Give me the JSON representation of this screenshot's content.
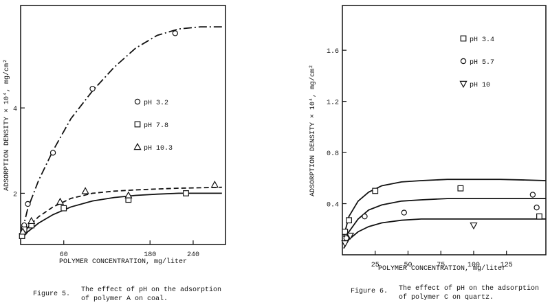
{
  "chart_data": [
    {
      "type": "scatter",
      "figure_label": "Figure 5.",
      "caption_lines": [
        "The effect of pH on the adsorption",
        "of polymer A on coal."
      ],
      "title": "",
      "xlabel": "POLYMER CONCENTRATION, mg/liter",
      "ylabel": "ADSORPTION DENSITY × 10⁴, mg/cm²",
      "xlim": [
        0,
        285
      ],
      "ylim": [
        0.8,
        6.4
      ],
      "xticks": [
        60,
        180,
        240
      ],
      "yticks": [
        2,
        4
      ],
      "grid": false,
      "legend_position": "right",
      "series": [
        {
          "name": "pH 3.2",
          "marker": "circle",
          "line_style": "dash-dot",
          "points": [
            [
              5,
              1.25
            ],
            [
              10,
              1.75
            ],
            [
              45,
              2.95
            ],
            [
              100,
              4.45
            ],
            [
              215,
              5.75
            ]
          ],
          "curve": [
            [
              2,
              1.1
            ],
            [
              10,
              1.65
            ],
            [
              25,
              2.3
            ],
            [
              45,
              3.0
            ],
            [
              70,
              3.75
            ],
            [
              100,
              4.4
            ],
            [
              130,
              4.95
            ],
            [
              160,
              5.4
            ],
            [
              190,
              5.7
            ],
            [
              220,
              5.85
            ],
            [
              250,
              5.9
            ],
            [
              280,
              5.9
            ]
          ]
        },
        {
          "name": "pH 7.8",
          "marker": "square",
          "line_style": "solid",
          "points": [
            [
              2,
              1.0
            ],
            [
              5,
              1.15
            ],
            [
              15,
              1.25
            ],
            [
              60,
              1.65
            ],
            [
              150,
              1.85
            ],
            [
              230,
              2.0
            ]
          ],
          "curve": [
            [
              2,
              0.95
            ],
            [
              10,
              1.1
            ],
            [
              25,
              1.3
            ],
            [
              45,
              1.5
            ],
            [
              70,
              1.68
            ],
            [
              100,
              1.82
            ],
            [
              130,
              1.9
            ],
            [
              160,
              1.95
            ],
            [
              190,
              1.98
            ],
            [
              220,
              2.0
            ],
            [
              250,
              2.0
            ],
            [
              280,
              2.0
            ]
          ]
        },
        {
          "name": "pH 10.3",
          "marker": "triangle",
          "line_style": "dashed",
          "points": [
            [
              3,
              1.1
            ],
            [
              15,
              1.35
            ],
            [
              55,
              1.8
            ],
            [
              90,
              2.05
            ],
            [
              150,
              1.95
            ],
            [
              270,
              2.2
            ]
          ],
          "curve": [
            [
              2,
              1.0
            ],
            [
              10,
              1.2
            ],
            [
              25,
              1.45
            ],
            [
              45,
              1.68
            ],
            [
              70,
              1.88
            ],
            [
              100,
              2.0
            ],
            [
              130,
              2.05
            ],
            [
              160,
              2.08
            ],
            [
              190,
              2.1
            ],
            [
              220,
              2.12
            ],
            [
              250,
              2.13
            ],
            [
              280,
              2.14
            ]
          ]
        }
      ]
    },
    {
      "type": "scatter",
      "figure_label": "Figure 6.",
      "caption_lines": [
        "The effect of pH on the adsorption",
        "of polymer C on quartz."
      ],
      "title": "",
      "xlabel": "POLYMER CONCENTRATION, mg/liter",
      "ylabel": "ADSORPTION DENSITY × 10⁴, mg/cm²",
      "xlim": [
        0,
        155
      ],
      "ylim": [
        0,
        1.95
      ],
      "xticks": [
        25,
        50,
        75,
        100,
        125
      ],
      "yticks": [
        0.4,
        0.8,
        1.2,
        1.6
      ],
      "grid": false,
      "legend_position": "top-right",
      "series": [
        {
          "name": "pH 3.4",
          "marker": "square",
          "line_style": "solid",
          "points": [
            [
              2,
              0.18
            ],
            [
              5,
              0.27
            ],
            [
              25,
              0.5
            ],
            [
              90,
              0.52
            ],
            [
              150,
              0.3
            ]
          ],
          "curve": [
            [
              1,
              0.14
            ],
            [
              5,
              0.3
            ],
            [
              12,
              0.42
            ],
            [
              20,
              0.49
            ],
            [
              30,
              0.54
            ],
            [
              45,
              0.57
            ],
            [
              60,
              0.58
            ],
            [
              80,
              0.59
            ],
            [
              100,
              0.59
            ],
            [
              120,
              0.59
            ],
            [
              140,
              0.585
            ],
            [
              155,
              0.58
            ]
          ]
        },
        {
          "name": "pH 5.7",
          "marker": "circle",
          "line_style": "solid",
          "points": [
            [
              3,
              0.13
            ],
            [
              17,
              0.3
            ],
            [
              47,
              0.33
            ],
            [
              145,
              0.47
            ],
            [
              148,
              0.37
            ]
          ],
          "curve": [
            [
              1,
              0.08
            ],
            [
              5,
              0.18
            ],
            [
              12,
              0.28
            ],
            [
              20,
              0.35
            ],
            [
              30,
              0.39
            ],
            [
              45,
              0.42
            ],
            [
              60,
              0.43
            ],
            [
              80,
              0.44
            ],
            [
              100,
              0.44
            ],
            [
              120,
              0.44
            ],
            [
              140,
              0.44
            ],
            [
              155,
              0.44
            ]
          ]
        },
        {
          "name": "pH 10",
          "marker": "triangle-down",
          "line_style": "solid",
          "points": [
            [
              2,
              0.09
            ],
            [
              6,
              0.15
            ],
            [
              100,
              0.23
            ]
          ],
          "curve": [
            [
              1,
              0.05
            ],
            [
              5,
              0.12
            ],
            [
              12,
              0.18
            ],
            [
              20,
              0.22
            ],
            [
              30,
              0.25
            ],
            [
              45,
              0.27
            ],
            [
              60,
              0.28
            ],
            [
              80,
              0.28
            ],
            [
              100,
              0.28
            ],
            [
              120,
              0.28
            ],
            [
              140,
              0.28
            ],
            [
              155,
              0.28
            ]
          ]
        }
      ]
    }
  ]
}
